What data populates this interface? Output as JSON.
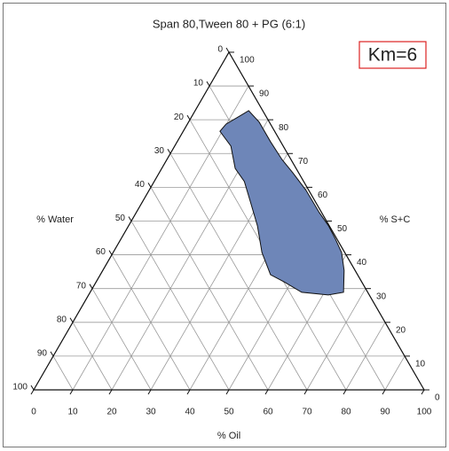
{
  "chart_data": {
    "type": "ternary",
    "title": "Span 80,Tween 80 +  PG (6:1)",
    "annotation": "Km=6",
    "axes": {
      "oil": {
        "label": "% Oil",
        "ticks": [
          0,
          10,
          20,
          30,
          40,
          50,
          60,
          70,
          80,
          90,
          100
        ]
      },
      "sc": {
        "label": "% S+C",
        "ticks": [
          0,
          10,
          20,
          30,
          40,
          50,
          60,
          70,
          80,
          90,
          100
        ]
      },
      "water": {
        "label": "% Water",
        "ticks": [
          0,
          10,
          20,
          30,
          40,
          50,
          60,
          70,
          80,
          90,
          100
        ]
      }
    },
    "grid": true,
    "region": {
      "color": "#6e86b8",
      "oil": [
        13.7,
        18.1,
        23.9,
        29.5,
        34.2,
        40.2,
        46.9,
        51.2,
        55.0,
        58.5,
        61.8,
        64.9,
        61.4,
        54.2,
        48.1,
        43.6,
        38.1,
        33.0,
        28.1,
        23.1,
        18.8,
        14.4,
        9.4,
        9.9,
        12.5
      ],
      "sc": [
        82.7,
        79.3,
        73.5,
        68.2,
        64.3,
        59.1,
        52.5,
        48.6,
        44.6,
        40.7,
        35.4,
        28.9,
        28.1,
        28.9,
        32.0,
        34.1,
        40.7,
        48.6,
        55.1,
        61.7,
        65.6,
        72.2,
        76.6,
        78.7,
        81.4
      ]
    }
  }
}
